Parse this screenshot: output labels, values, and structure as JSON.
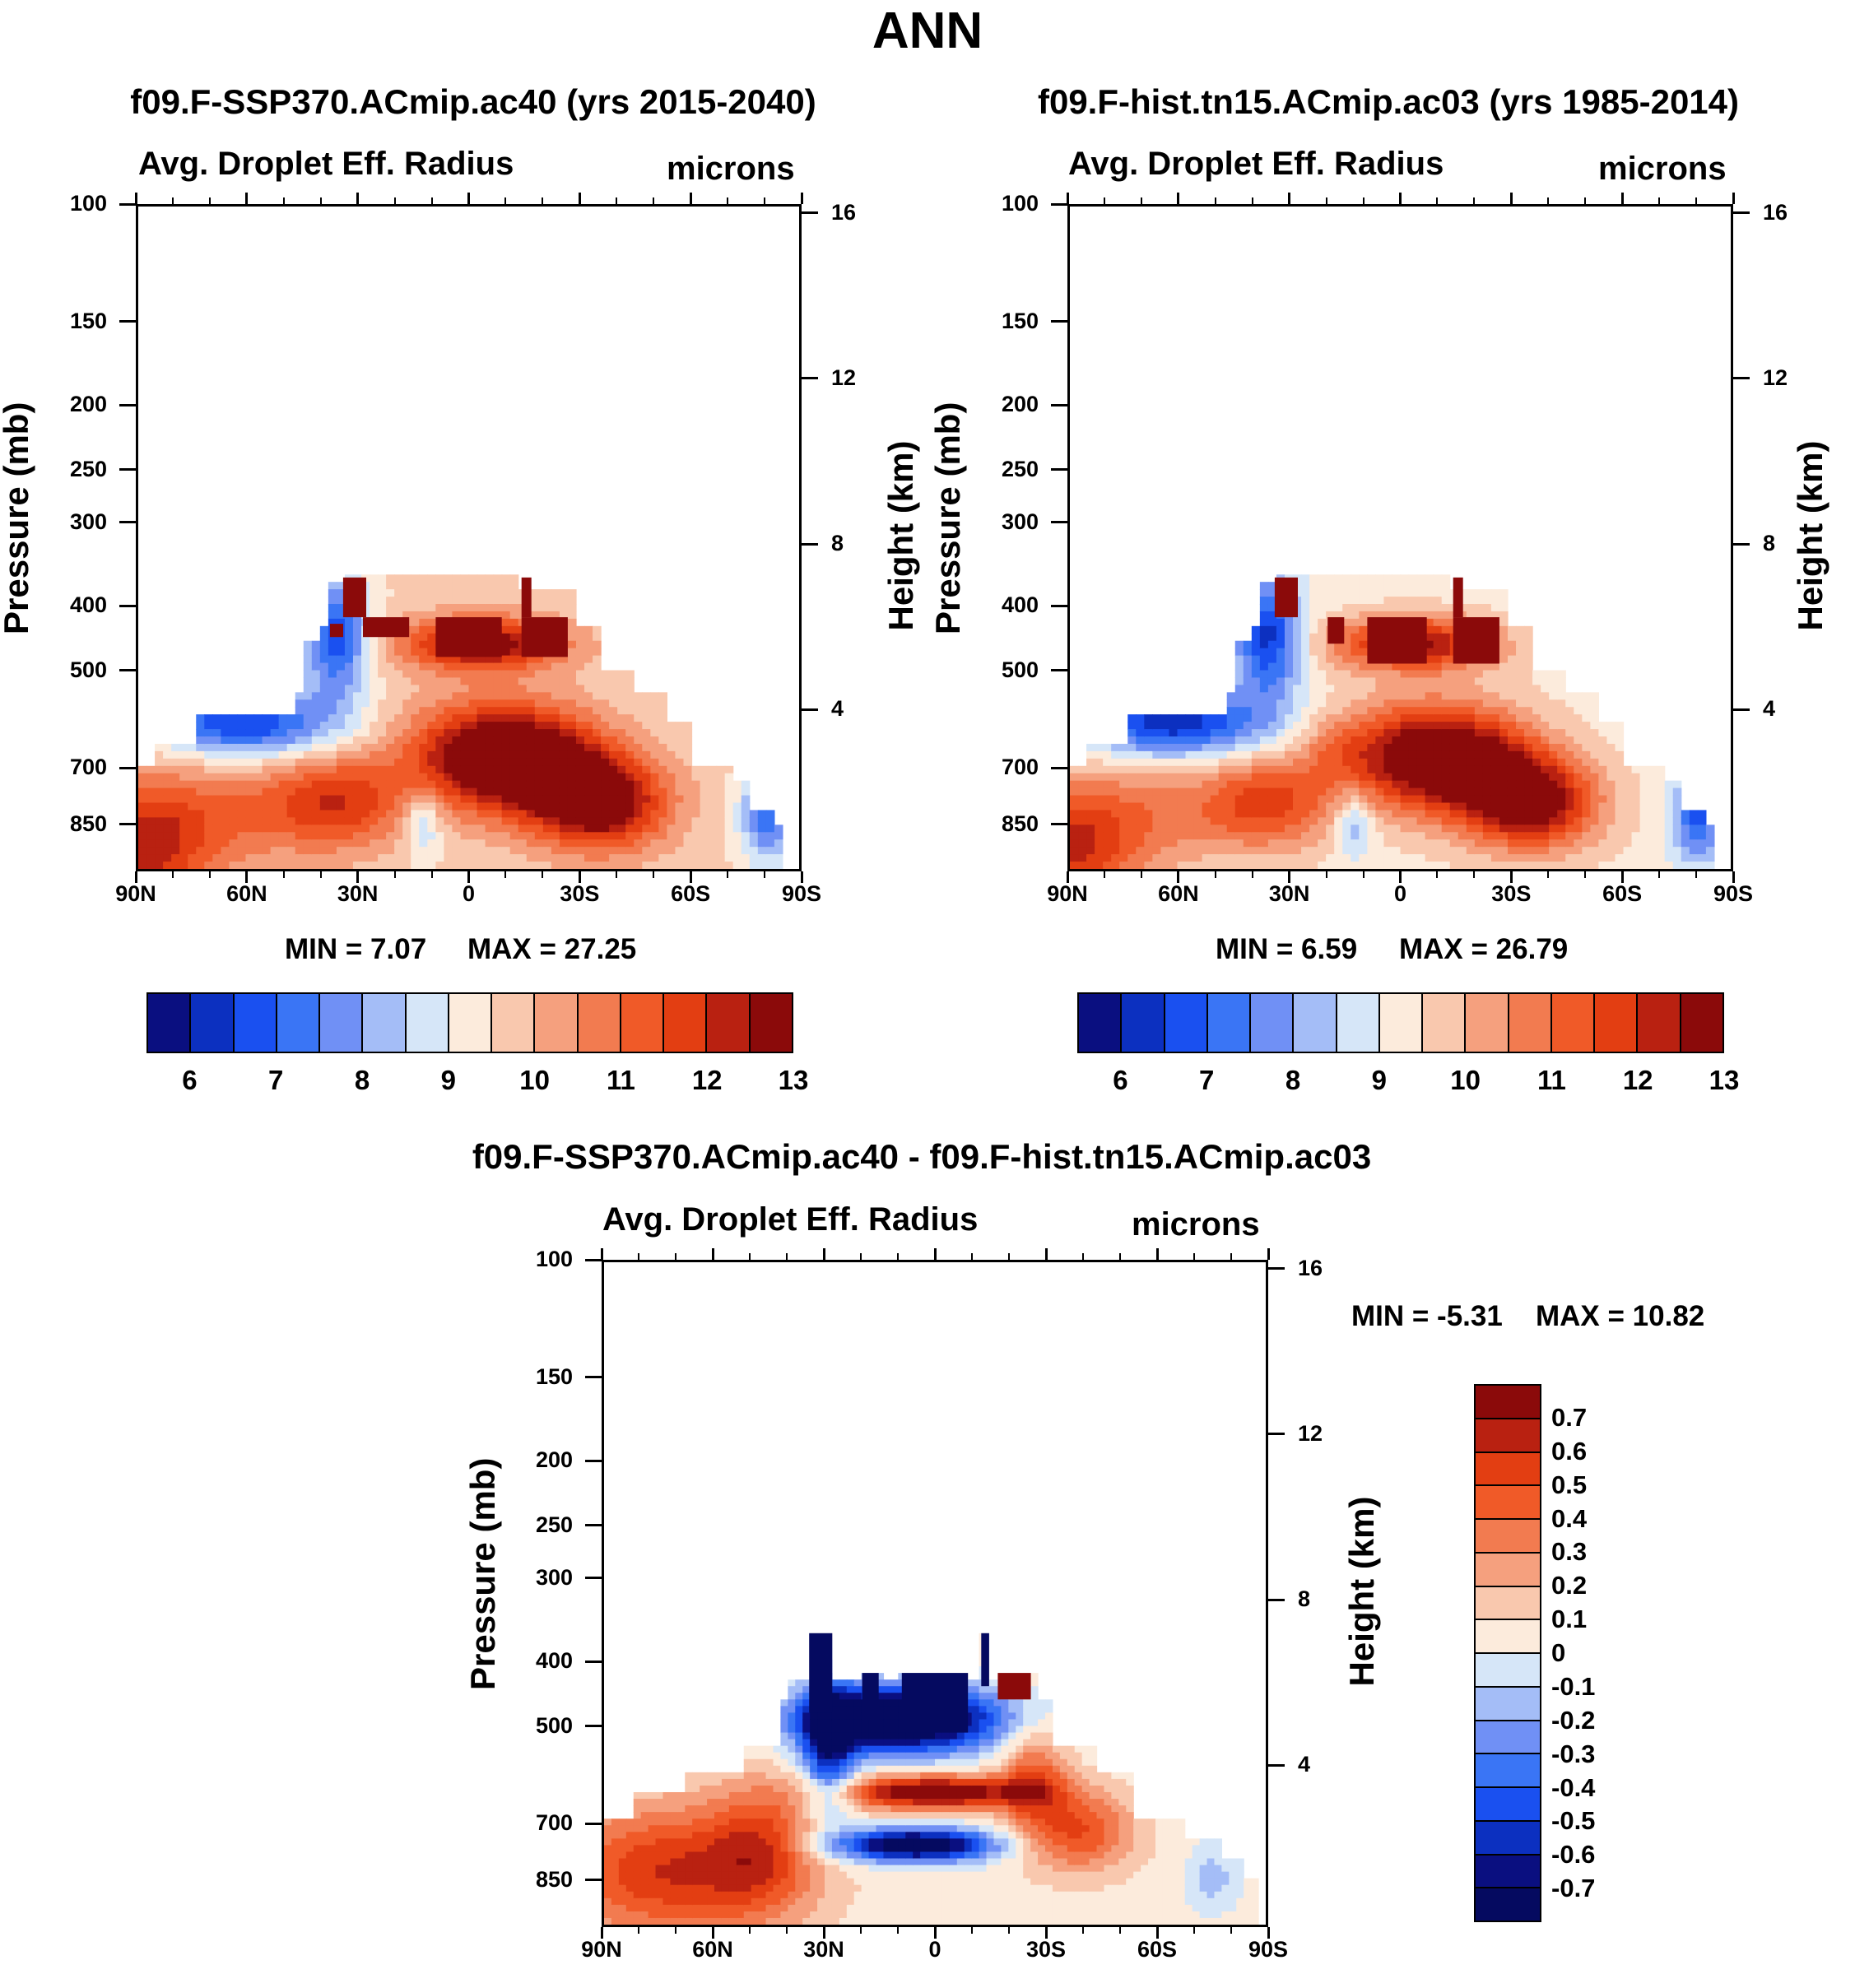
{
  "figure": {
    "title": "ANN"
  },
  "chart_data": [
    {
      "type": "heatmap",
      "id": "case",
      "title": "f09.F-SSP370.ACmip.ac40 (yrs 2015-2040)",
      "variable": "Avg. Droplet Eff. Radius",
      "units": "microns",
      "xlabel": "",
      "ylabel": "Pressure (mb)",
      "y2label": "Height (km)",
      "x_ticks": [
        "90N",
        "60N",
        "30N",
        "0",
        "30S",
        "60S",
        "90S"
      ],
      "y_ticks": [
        "100",
        "150",
        "200",
        "250",
        "300",
        "400",
        "500",
        "700",
        "850"
      ],
      "y2_ticks": [
        "16",
        "12",
        "8",
        "4"
      ],
      "min_text": "MIN =   7.07",
      "max_text": "MAX =  27.25",
      "colorbar_labels": [
        "6",
        "7",
        "8",
        "9",
        "10",
        "11",
        "12",
        "13"
      ],
      "colorbar_colors": [
        "#0a0f80",
        "#0c30c0",
        "#1a50f0",
        "#3a75f5",
        "#7090f5",
        "#a4bdf7",
        "#d6e6f8",
        "#fcebdc",
        "#f9c8ae",
        "#f5a07e",
        "#f27b50",
        "#f05a28",
        "#e33e12",
        "#b92111",
        "#8b0a0a"
      ]
    },
    {
      "type": "heatmap",
      "id": "control",
      "title": "f09.F-hist.tn15.ACmip.ac03 (yrs 1985-2014)",
      "variable": "Avg. Droplet Eff. Radius",
      "units": "microns",
      "xlabel": "",
      "ylabel": "Pressure (mb)",
      "y2label": "Height (km)",
      "x_ticks": [
        "90N",
        "60N",
        "30N",
        "0",
        "30S",
        "60S",
        "90S"
      ],
      "y_ticks": [
        "100",
        "150",
        "200",
        "250",
        "300",
        "400",
        "500",
        "700",
        "850"
      ],
      "y2_ticks": [
        "16",
        "12",
        "8",
        "4"
      ],
      "min_text": "MIN =   6.59",
      "max_text": "MAX =  26.79",
      "colorbar_labels": [
        "6",
        "7",
        "8",
        "9",
        "10",
        "11",
        "12",
        "13"
      ],
      "colorbar_colors": [
        "#0a0f80",
        "#0c30c0",
        "#1a50f0",
        "#3a75f5",
        "#7090f5",
        "#a4bdf7",
        "#d6e6f8",
        "#fcebdc",
        "#f9c8ae",
        "#f5a07e",
        "#f27b50",
        "#f05a28",
        "#e33e12",
        "#b92111",
        "#8b0a0a"
      ]
    },
    {
      "type": "heatmap",
      "id": "diff",
      "title": "f09.F-SSP370.ACmip.ac40 - f09.F-hist.tn15.ACmip.ac03",
      "variable": "Avg. Droplet Eff. Radius",
      "units": "microns",
      "xlabel": "",
      "ylabel": "Pressure (mb)",
      "y2label": "Height (km)",
      "x_ticks": [
        "90N",
        "60N",
        "30N",
        "0",
        "30S",
        "60S",
        "90S"
      ],
      "y_ticks": [
        "100",
        "150",
        "200",
        "250",
        "300",
        "400",
        "500",
        "700",
        "850"
      ],
      "y2_ticks": [
        "16",
        "12",
        "8",
        "4"
      ],
      "min_text": "MIN =  -5.31",
      "max_text": "MAX =  10.82",
      "colorbar_labels": [
        "0.7",
        "0.6",
        "0.5",
        "0.4",
        "0.3",
        "0.2",
        "0.1",
        "0",
        "-0.1",
        "-0.2",
        "-0.3",
        "-0.4",
        "-0.5",
        "-0.6",
        "-0.7"
      ],
      "colorbar_colors": [
        "#8b0a0a",
        "#b92111",
        "#e33e12",
        "#f05a28",
        "#f27b50",
        "#f5a07e",
        "#f9c8ae",
        "#fcebdc",
        "#d6e6f8",
        "#a4bdf7",
        "#7090f5",
        "#3a75f5",
        "#1a50f0",
        "#0c30c0",
        "#0a0f80",
        "#050a60"
      ]
    }
  ]
}
